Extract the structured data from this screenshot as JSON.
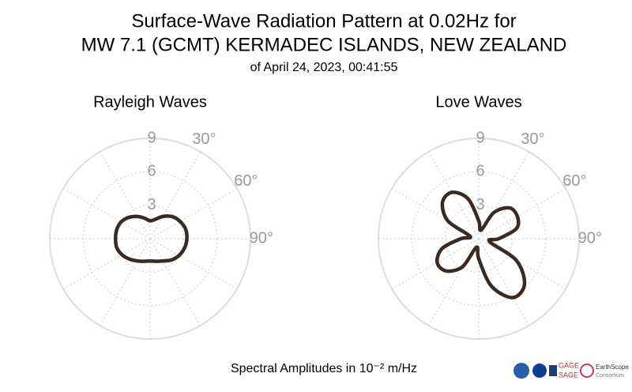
{
  "figure": {
    "title_lines": [
      "Surface-Wave Radiation Pattern at 0.02Hz for",
      "MW 7.1 (GCMT) KERMADEC ISLANDS, NEW ZEALAND"
    ],
    "subtitle": "of April 24, 2023, 00:41:55",
    "xlabel": "Spectral Amplitudes in 10⁻² m/Hz",
    "logos": [
      "GAGE",
      "SAGE",
      "EarthScope",
      "Consortium"
    ]
  },
  "chart_data": [
    {
      "type": "polar",
      "title": "Rayleigh Waves",
      "color": "#3b2a1f",
      "theta": [
        0,
        15,
        30,
        45,
        60,
        75,
        90,
        105,
        120,
        135,
        150,
        165,
        180,
        195,
        210,
        225,
        240,
        255,
        270,
        285,
        300,
        315,
        330,
        345
      ],
      "values": [
        1.6,
        1.8,
        2.3,
        2.8,
        3.1,
        3.3,
        3.3,
        3.2,
        3.0,
        2.7,
        2.3,
        2.1,
        2.0,
        2.1,
        2.3,
        2.6,
        2.9,
        3.1,
        3.1,
        3.1,
        3.0,
        2.7,
        2.3,
        1.9
      ],
      "rlim": [
        0,
        9
      ],
      "rticks": [
        3,
        6,
        9
      ],
      "thetaticks": [
        {
          "value": 30,
          "label": "30°"
        },
        {
          "value": 60,
          "label": "60°"
        },
        {
          "value": 90,
          "label": "90°"
        }
      ]
    },
    {
      "type": "polar",
      "title": "Love Waves",
      "color": "#3b2a1f",
      "theta": [
        0,
        15,
        30,
        45,
        60,
        75,
        90,
        105,
        120,
        135,
        150,
        165,
        180,
        195,
        210,
        225,
        240,
        255,
        270,
        285,
        300,
        315,
        330,
        345
      ],
      "values": [
        1.6,
        0.8,
        2.7,
        3.9,
        4.0,
        3.5,
        1.8,
        1.0,
        3.9,
        5.8,
        6.1,
        4.4,
        1.8,
        0.8,
        2.9,
        4.1,
        4.3,
        3.4,
        1.6,
        0.8,
        3.2,
        4.6,
        4.8,
        3.7
      ],
      "rlim": [
        0,
        9
      ],
      "rticks": [
        3,
        6,
        9
      ],
      "thetaticks": [
        {
          "value": 30,
          "label": "30°"
        },
        {
          "value": 60,
          "label": "60°"
        },
        {
          "value": 90,
          "label": "90°"
        }
      ]
    }
  ]
}
